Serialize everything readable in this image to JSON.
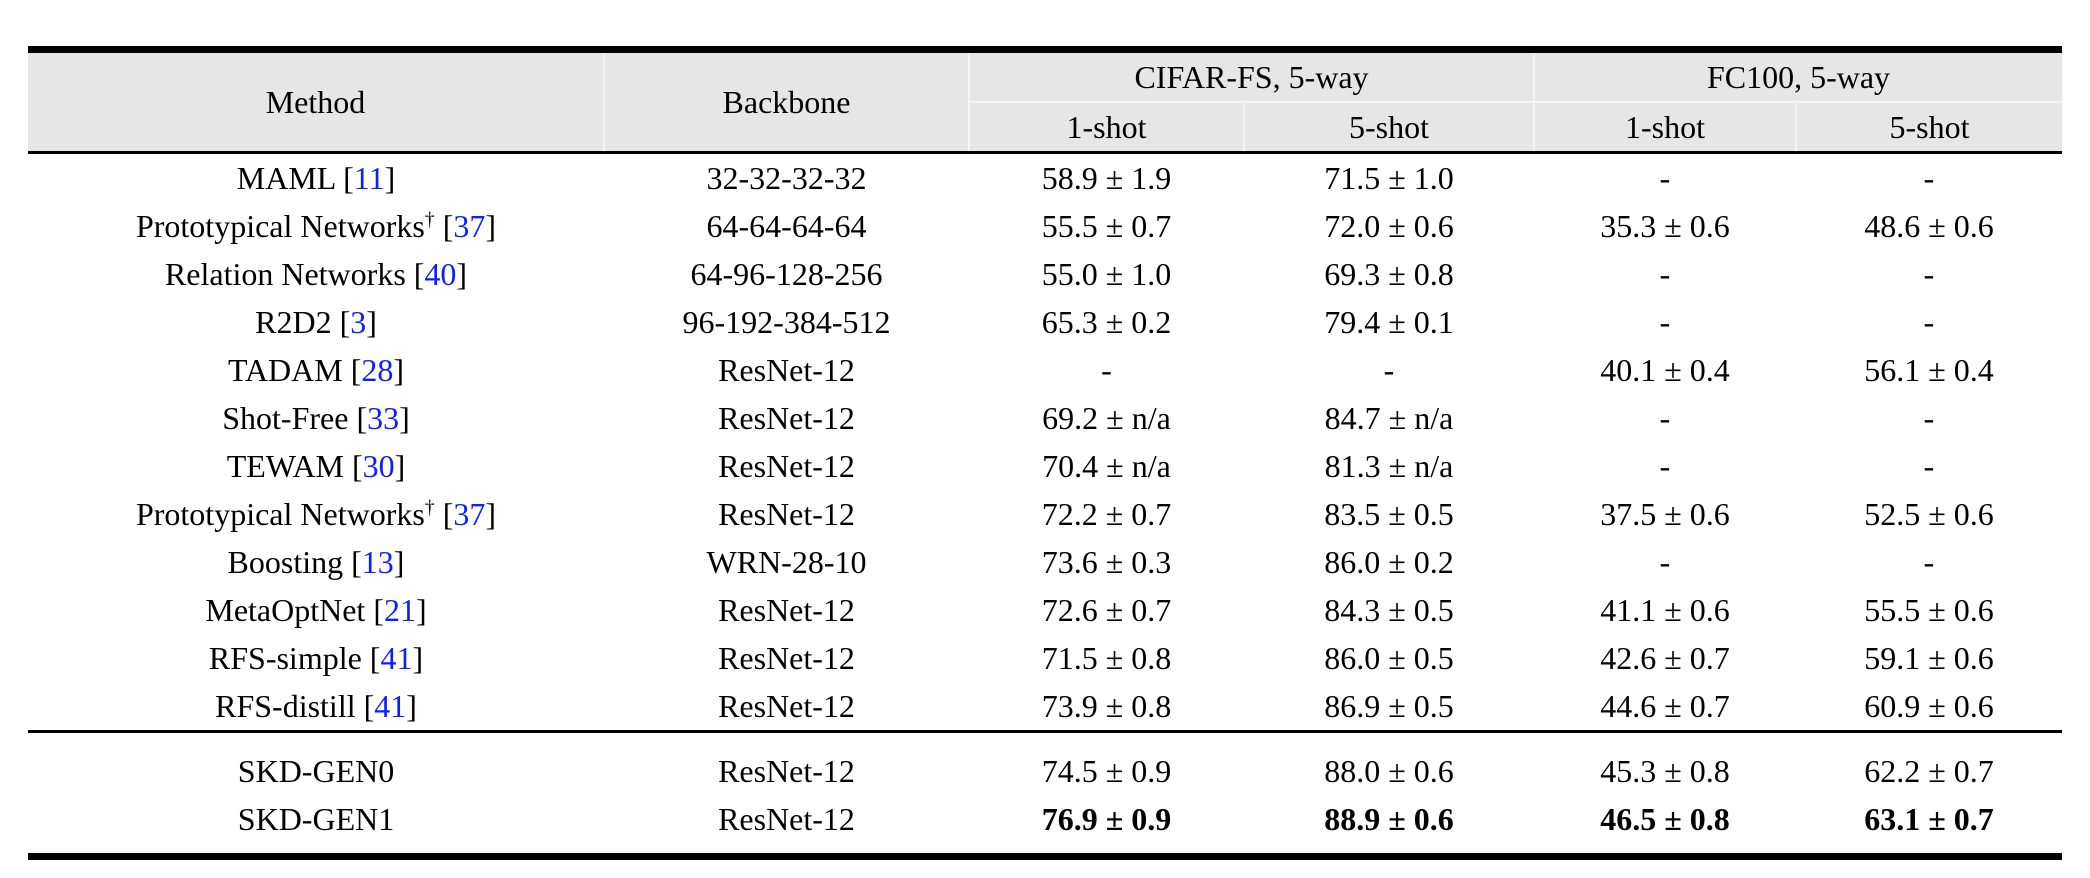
{
  "colors": {
    "header_bg": "#e6e6e6",
    "citation_blue": "#0b1fff",
    "text": "#000000",
    "rule": "#000000"
  },
  "citation_brackets": [
    "[",
    "]"
  ],
  "table": {
    "header": {
      "method": "Method",
      "backbone": "Backbone",
      "groups": [
        {
          "label": "CIFAR-FS, 5-way",
          "cols": [
            "1-shot",
            "5-shot"
          ]
        },
        {
          "label": "FC100, 5-way",
          "cols": [
            "1-shot",
            "5-shot"
          ]
        }
      ]
    },
    "sections": [
      {
        "name": "baselines",
        "rows": [
          {
            "method": "MAML",
            "sup": "",
            "cite": "11",
            "backbone": "32-32-32-32",
            "values": [
              "58.9 ± 1.9",
              "71.5 ± 1.0",
              "-",
              "-"
            ],
            "bold": false
          },
          {
            "method": "Prototypical Networks",
            "sup": "†",
            "cite": "37",
            "backbone": "64-64-64-64",
            "values": [
              "55.5 ± 0.7",
              "72.0 ± 0.6",
              "35.3 ± 0.6",
              "48.6 ± 0.6"
            ],
            "bold": false
          },
          {
            "method": "Relation Networks",
            "sup": "",
            "cite": "40",
            "backbone": "64-96-128-256",
            "values": [
              "55.0 ± 1.0",
              "69.3 ± 0.8",
              "-",
              "-"
            ],
            "bold": false
          },
          {
            "method": "R2D2",
            "sup": "",
            "cite": "3",
            "backbone": "96-192-384-512",
            "values": [
              "65.3 ± 0.2",
              "79.4 ± 0.1",
              "-",
              "-"
            ],
            "bold": false
          },
          {
            "method": "TADAM",
            "sup": "",
            "cite": "28",
            "backbone": "ResNet-12",
            "values": [
              "-",
              "-",
              "40.1 ± 0.4",
              "56.1 ± 0.4"
            ],
            "bold": false
          },
          {
            "method": "Shot-Free",
            "sup": "",
            "cite": "33",
            "backbone": "ResNet-12",
            "values": [
              "69.2 ± n/a",
              "84.7 ± n/a",
              "-",
              "-"
            ],
            "bold": false
          },
          {
            "method": "TEWAM",
            "sup": "",
            "cite": "30",
            "backbone": "ResNet-12",
            "values": [
              "70.4 ± n/a",
              "81.3 ± n/a",
              "-",
              "-"
            ],
            "bold": false
          },
          {
            "method": "Prototypical Networks",
            "sup": "†",
            "cite": "37",
            "backbone": "ResNet-12",
            "values": [
              "72.2 ± 0.7",
              "83.5 ± 0.5",
              "37.5 ± 0.6",
              "52.5 ± 0.6"
            ],
            "bold": false
          },
          {
            "method": "Boosting",
            "sup": "",
            "cite": "13",
            "backbone": "WRN-28-10",
            "values": [
              "73.6 ± 0.3",
              "86.0 ± 0.2",
              "-",
              "-"
            ],
            "bold": false
          },
          {
            "method": "MetaOptNet",
            "sup": "",
            "cite": "21",
            "backbone": "ResNet-12",
            "values": [
              "72.6 ± 0.7",
              "84.3 ± 0.5",
              "41.1 ± 0.6",
              "55.5 ± 0.6"
            ],
            "bold": false
          },
          {
            "method": "RFS-simple",
            "sup": "",
            "cite": "41",
            "backbone": "ResNet-12",
            "values": [
              "71.5 ± 0.8",
              "86.0 ± 0.5",
              "42.6 ± 0.7",
              "59.1 ± 0.6"
            ],
            "bold": false
          },
          {
            "method": "RFS-distill",
            "sup": "",
            "cite": "41",
            "backbone": "ResNet-12",
            "values": [
              "73.9 ± 0.8",
              "86.9 ± 0.5",
              "44.6 ± 0.7",
              "60.9 ± 0.6"
            ],
            "bold": false
          }
        ]
      },
      {
        "name": "ours",
        "rows": [
          {
            "method": "SKD-GEN0",
            "sup": "",
            "cite": "",
            "backbone": "ResNet-12",
            "values": [
              "74.5 ± 0.9",
              "88.0 ± 0.6",
              "45.3 ± 0.8",
              "62.2 ± 0.7"
            ],
            "bold": false
          },
          {
            "method": "SKD-GEN1",
            "sup": "",
            "cite": "",
            "backbone": "ResNet-12",
            "values": [
              "76.9 ± 0.9",
              "88.9 ± 0.6",
              "46.5 ± 0.8",
              "63.1 ± 0.7"
            ],
            "bold": true
          }
        ]
      }
    ]
  }
}
